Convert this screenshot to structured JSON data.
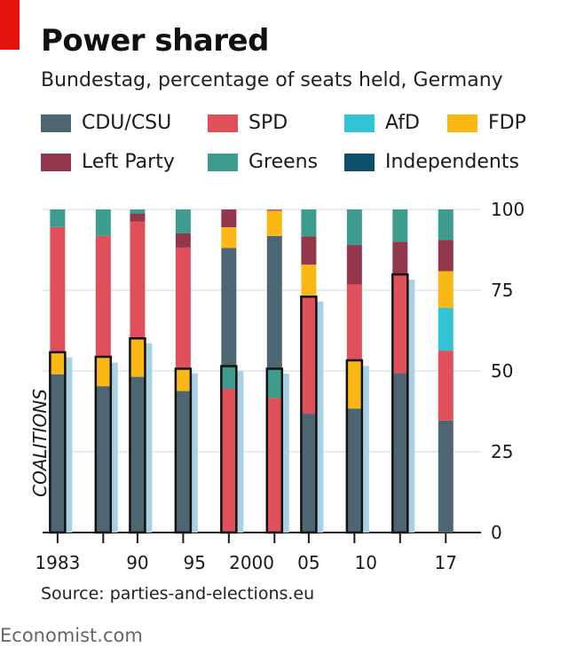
{
  "title": "Power shared",
  "subtitle": "Bundestag, percentage of seats held, Germany",
  "source": "Source: parties-and-elections.eu",
  "brand": "Economist.com",
  "coalition_label": "COALITIONS",
  "colors": {
    "CDU/CSU": "#4e6672",
    "SPD": "#e0505a",
    "AfD": "#33c3d6",
    "FDP": "#fbb714",
    "Left Party": "#93374d",
    "Greens": "#3d9c8e",
    "Independents": "#0b4f6c",
    "coalition_ghost": "#a9d1e4",
    "accent": "#e3120b"
  },
  "legend": [
    "CDU/CSU",
    "SPD",
    "AfD",
    "FDP",
    "Left Party",
    "Greens",
    "Independents"
  ],
  "chart_data": {
    "type": "bar",
    "stacked": true,
    "x_tick_labels": [
      "1983",
      "90",
      "95",
      "2000",
      "05",
      "10",
      "17"
    ],
    "y_ticks": [
      0,
      25,
      50,
      75,
      100
    ],
    "ylim": [
      0,
      100
    ],
    "ylabel": "",
    "xlabel": "",
    "grid": true,
    "legend_position": "top",
    "elections": [
      {
        "year": 1983,
        "segments": {
          "CDU/CSU": 49,
          "FDP": 6.8,
          "SPD": 38.8,
          "Greens": 5.4
        },
        "coalition_top": 55.8,
        "coalition": [
          "CDU/CSU",
          "FDP"
        ]
      },
      {
        "year": 1987,
        "segments": {
          "CDU/CSU": 45.3,
          "FDP": 9.1,
          "SPD": 37.4,
          "Greens": 8.2
        },
        "coalition_top": 54.4,
        "coalition": [
          "CDU/CSU",
          "FDP"
        ]
      },
      {
        "year": 1990,
        "segments": {
          "CDU/CSU": 48.2,
          "FDP": 11.9,
          "SPD": 36.1,
          "Left Party": 2.6,
          "Greens": 1.2
        },
        "coalition_top": 60.1,
        "coalition": [
          "CDU/CSU",
          "FDP"
        ]
      },
      {
        "year": 1994,
        "segments": {
          "CDU/CSU": 43.8,
          "FDP": 6.9,
          "SPD": 37.5,
          "Left Party": 4.4,
          "Greens": 7.4
        },
        "coalition_top": 50.7,
        "coalition": [
          "CDU/CSU",
          "FDP"
        ]
      },
      {
        "year": 1998,
        "segments": {
          "SPD": 44.5,
          "Greens": 7.0,
          "CDU/CSU": 36.6,
          "FDP": 6.4,
          "Left Party": 5.5
        },
        "coalition_top": 51.5,
        "coalition": [
          "SPD",
          "Greens"
        ]
      },
      {
        "year": 2002,
        "segments": {
          "SPD": 41.6,
          "Greens": 9.1,
          "CDU/CSU": 41.1,
          "FDP": 7.8,
          "Left Party": 0.3
        },
        "coalition_top": 50.7,
        "coalition": [
          "SPD",
          "Greens"
        ]
      },
      {
        "year": 2005,
        "segments": {
          "CDU/CSU": 36.8,
          "SPD": 36.2,
          "FDP": 9.9,
          "Left Party": 8.8,
          "Greens": 8.3
        },
        "coalition_top": 73.0,
        "coalition": [
          "CDU/CSU",
          "SPD"
        ]
      },
      {
        "year": 2009,
        "segments": {
          "CDU/CSU": 38.4,
          "FDP": 14.9,
          "SPD": 23.5,
          "Left Party": 12.2,
          "Greens": 11.0
        },
        "coalition_top": 53.3,
        "coalition": [
          "CDU/CSU",
          "FDP"
        ]
      },
      {
        "year": 2013,
        "segments": {
          "CDU/CSU": 49.3,
          "SPD": 30.6,
          "Left Party": 10.1,
          "Greens": 10.0
        },
        "coalition_top": 79.9,
        "coalition": [
          "CDU/CSU",
          "SPD"
        ]
      },
      {
        "year": 2017,
        "segments": {
          "CDU/CSU": 34.7,
          "SPD": 21.6,
          "AfD": 13.3,
          "FDP": 11.3,
          "Left Party": 9.7,
          "Greens": 9.4
        },
        "coalition_top": null,
        "coalition": []
      }
    ],
    "coalition_share_at_term_end": [
      {
        "year": 1983,
        "value": 54.2
      },
      {
        "year": 1987,
        "value": 52.6
      },
      {
        "year": 1990,
        "value": 58.6
      },
      {
        "year": 1994,
        "value": 49.3
      },
      {
        "year": 1998,
        "value": 50.0
      },
      {
        "year": 2002,
        "value": 49.2
      },
      {
        "year": 2005,
        "value": 71.5
      },
      {
        "year": 2009,
        "value": 51.6
      },
      {
        "year": 2013,
        "value": 78.3
      }
    ]
  }
}
